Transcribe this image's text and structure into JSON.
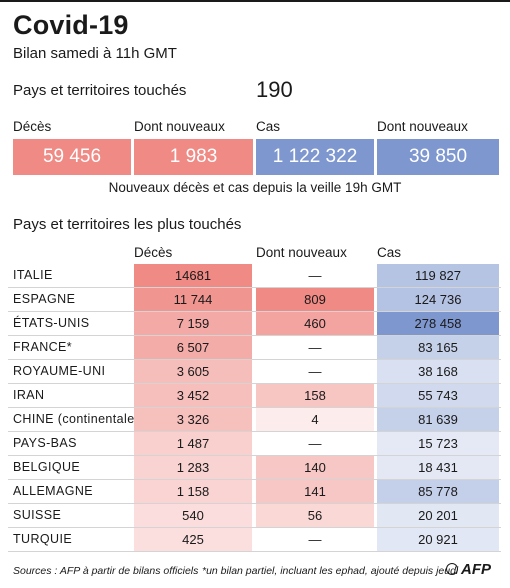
{
  "header": {
    "title": "Covid-19",
    "subtitle": "Bilan samedi à 11h GMT"
  },
  "countries_touched": {
    "label": "Pays et territoires touchés",
    "value": "190"
  },
  "totals": [
    {
      "label": "Décès",
      "value": "59 456",
      "color": "#ef8a85"
    },
    {
      "label": "Dont nouveaux",
      "value": "1 983",
      "color": "#ef8a85"
    },
    {
      "label": "Cas",
      "value": "1 122 322",
      "color": "#7f97cf"
    },
    {
      "label": "Dont nouveaux",
      "value": "39 850",
      "color": "#7f97cf"
    }
  ],
  "totals_note": "Nouveaux décès et cas depuis la veille 19h GMT",
  "table": {
    "title": "Pays et territoires les plus touchés",
    "columns": [
      "Décès",
      "Dont nouveaux",
      "Cas"
    ],
    "rows": [
      {
        "country": "ITALIE",
        "deaths": "14681",
        "new_deaths": "—",
        "cases": "119 827"
      },
      {
        "country": "ESPAGNE",
        "deaths": "11 744",
        "new_deaths": "809",
        "cases": "124 736"
      },
      {
        "country": "ÉTATS-UNIS",
        "deaths": "7 159",
        "new_deaths": "460",
        "cases": "278 458"
      },
      {
        "country": "FRANCE*",
        "deaths": "6 507",
        "new_deaths": "—",
        "cases": "83 165"
      },
      {
        "country": "ROYAUME-UNI",
        "deaths": "3 605",
        "new_deaths": "—",
        "cases": "38 168"
      },
      {
        "country": "IRAN",
        "deaths": "3 452",
        "new_deaths": "158",
        "cases": "55 743"
      },
      {
        "country": "CHINE (continentale)",
        "deaths": "3 326",
        "new_deaths": "4",
        "cases": "81 639"
      },
      {
        "country": "PAYS-BAS",
        "deaths": "1 487",
        "new_deaths": "—",
        "cases": "15 723"
      },
      {
        "country": "BELGIQUE",
        "deaths": "1 283",
        "new_deaths": "140",
        "cases": "18 431"
      },
      {
        "country": "ALLEMAGNE",
        "deaths": "1 158",
        "new_deaths": "141",
        "cases": "85 778"
      },
      {
        "country": "SUISSE",
        "deaths": "540",
        "new_deaths": "56",
        "cases": "20 201"
      },
      {
        "country": "TURQUIE",
        "deaths": "425",
        "new_deaths": "—",
        "cases": "20 921"
      }
    ]
  },
  "chart_data": {
    "type": "table",
    "title": "Pays et territoires les plus touchés",
    "columns": [
      "Décès",
      "Dont nouveaux",
      "Cas"
    ],
    "categories": [
      "ITALIE",
      "ESPAGNE",
      "ÉTATS-UNIS",
      "FRANCE*",
      "ROYAUME-UNI",
      "IRAN",
      "CHINE (continentale)",
      "PAYS-BAS",
      "BELGIQUE",
      "ALLEMAGNE",
      "SUISSE",
      "TURQUIE"
    ],
    "series": [
      {
        "name": "Décès",
        "values": [
          14681,
          11744,
          7159,
          6507,
          3605,
          3452,
          3326,
          1487,
          1283,
          1158,
          540,
          425
        ]
      },
      {
        "name": "Dont nouveaux",
        "values": [
          null,
          809,
          460,
          null,
          null,
          158,
          4,
          null,
          140,
          141,
          56,
          null
        ]
      },
      {
        "name": "Cas",
        "values": [
          119827,
          124736,
          278458,
          83165,
          38168,
          55743,
          81639,
          15723,
          18431,
          85778,
          20201,
          20921
        ]
      }
    ],
    "heat_colors": {
      "deaths": "#ef8a85",
      "cases": "#7f97cf"
    }
  },
  "footer": {
    "sources": "Sources : AFP à partir de bilans officiels",
    "note": "*un bilan partiel, incluant les ephad, ajouté depuis jeudi",
    "logo": "AFP"
  }
}
